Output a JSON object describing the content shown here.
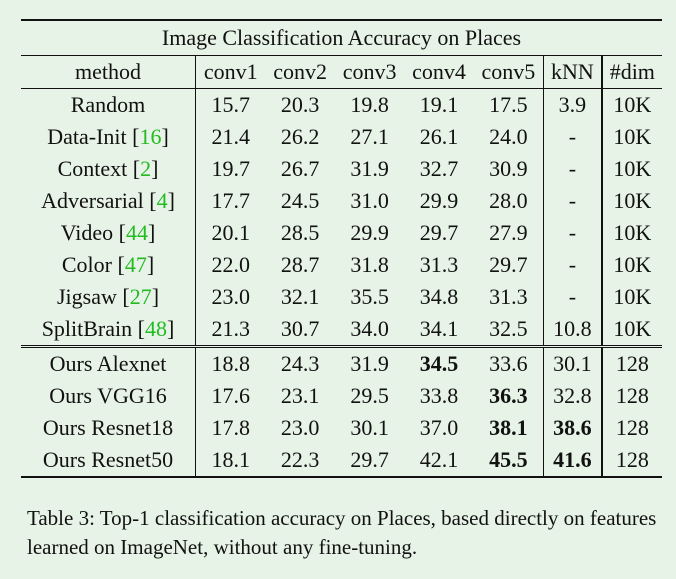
{
  "table": {
    "title": "Image Classification Accuracy on Places",
    "headers": [
      "method",
      "conv1",
      "conv2",
      "conv3",
      "conv4",
      "conv5",
      "kNN",
      "#dim"
    ],
    "rows": [
      {
        "method": "Random",
        "ref": "",
        "values": [
          "15.7",
          "20.3",
          "19.8",
          "19.1",
          "17.5",
          "3.9",
          "10K"
        ],
        "bold": []
      },
      {
        "method": "Data-Init ",
        "ref": "16",
        "values": [
          "21.4",
          "26.2",
          "27.1",
          "26.1",
          "24.0",
          "-",
          "10K"
        ],
        "bold": []
      },
      {
        "method": "Context ",
        "ref": "2",
        "values": [
          "19.7",
          "26.7",
          "31.9",
          "32.7",
          "30.9",
          "-",
          "10K"
        ],
        "bold": []
      },
      {
        "method": "Adversarial ",
        "ref": "4",
        "values": [
          "17.7",
          "24.5",
          "31.0",
          "29.9",
          "28.0",
          "-",
          "10K"
        ],
        "bold": []
      },
      {
        "method": "Video ",
        "ref": "44",
        "values": [
          "20.1",
          "28.5",
          "29.9",
          "29.7",
          "27.9",
          "-",
          "10K"
        ],
        "bold": []
      },
      {
        "method": "Color ",
        "ref": "47",
        "values": [
          "22.0",
          "28.7",
          "31.8",
          "31.3",
          "29.7",
          "-",
          "10K"
        ],
        "bold": []
      },
      {
        "method": "Jigsaw ",
        "ref": "27",
        "values": [
          "23.0",
          "32.1",
          "35.5",
          "34.8",
          "31.3",
          "-",
          "10K"
        ],
        "bold": []
      },
      {
        "method": "SplitBrain ",
        "ref": "48",
        "values": [
          "21.3",
          "30.7",
          "34.0",
          "34.1",
          "32.5",
          "10.8",
          "10K"
        ],
        "bold": []
      },
      {
        "method": "Ours Alexnet",
        "ref": "",
        "values": [
          "18.8",
          "24.3",
          "31.9",
          "34.5",
          "33.6",
          "30.1",
          "128"
        ],
        "bold": [
          3
        ]
      },
      {
        "method": "Ours VGG16",
        "ref": "",
        "values": [
          "17.6",
          "23.1",
          "29.5",
          "33.8",
          "36.3",
          "32.8",
          "128"
        ],
        "bold": [
          4
        ]
      },
      {
        "method": "Ours Resnet18",
        "ref": "",
        "values": [
          "17.8",
          "23.0",
          "30.1",
          "37.0",
          "38.1",
          "38.6",
          "128"
        ],
        "bold": [
          4,
          5
        ]
      },
      {
        "method": "Ours Resnet50",
        "ref": "",
        "values": [
          "18.1",
          "22.3",
          "29.7",
          "42.1",
          "45.5",
          "41.6",
          "128"
        ],
        "bold": [
          4,
          5
        ]
      }
    ]
  },
  "caption": "Table 3: Top-1 classification accuracy on Places, based directly on features learned on ImageNet, without any fine-tuning.",
  "colors": {
    "background": "#e6f3e6",
    "reference": "#22bb22",
    "text": "#111111"
  }
}
